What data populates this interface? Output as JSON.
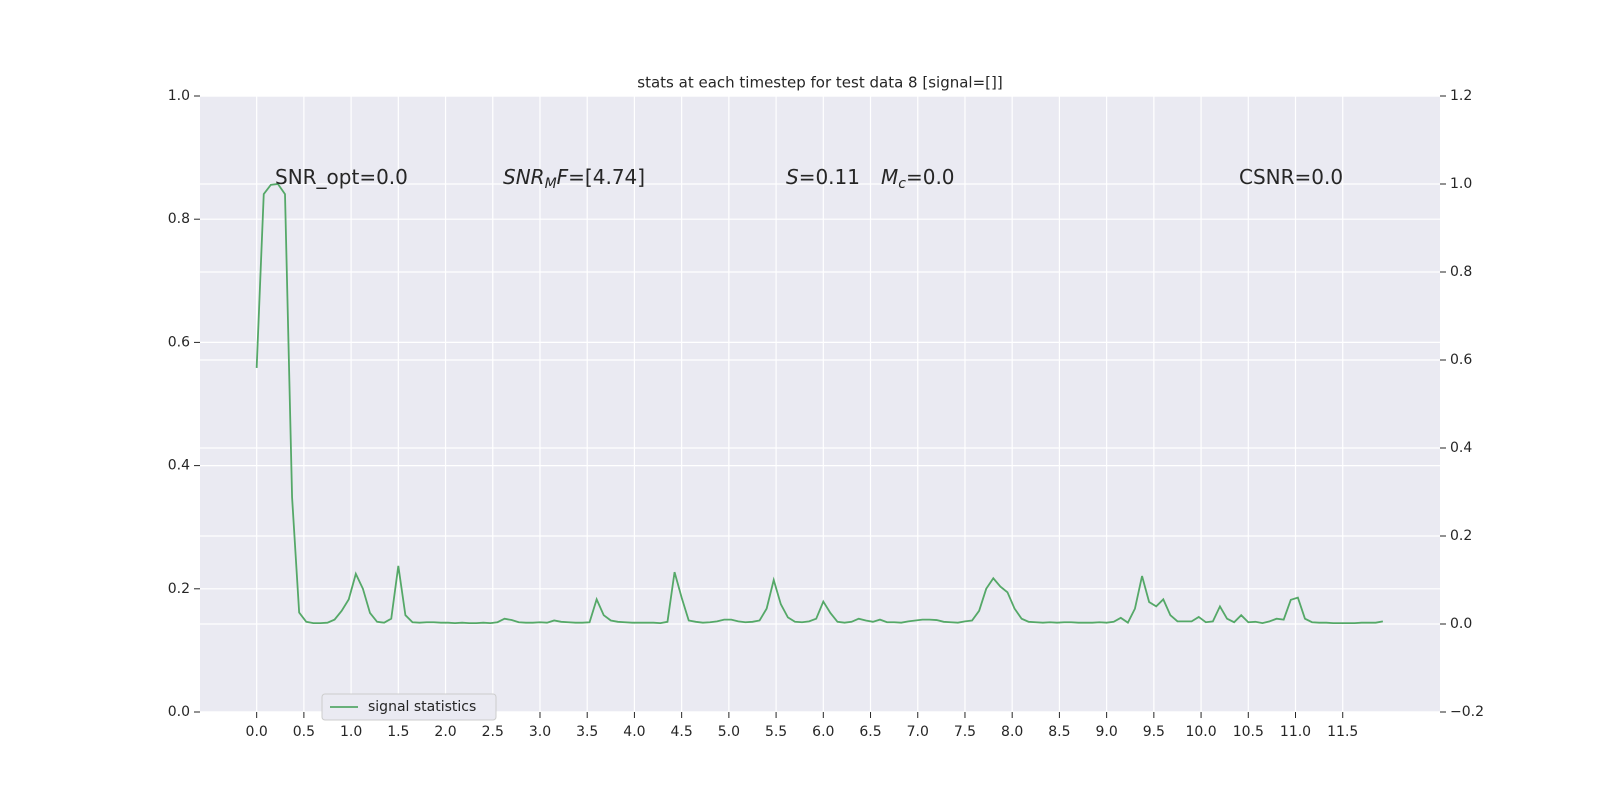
{
  "chart_data": {
    "type": "line",
    "title": "stats at each timestep for test data 8 [signal=[]]",
    "x": [
      0,
      0.075,
      0.15,
      0.225,
      0.3,
      0.375,
      0.45,
      0.525,
      0.6,
      0.675,
      0.75,
      0.825,
      0.9,
      0.975,
      1.05,
      1.125,
      1.2,
      1.275,
      1.35,
      1.425,
      1.5,
      1.575,
      1.65,
      1.725,
      1.8,
      1.875,
      1.95,
      2.025,
      2.1,
      2.175,
      2.25,
      2.325,
      2.4,
      2.475,
      2.55,
      2.625,
      2.7,
      2.775,
      2.85,
      2.925,
      3,
      3.075,
      3.15,
      3.225,
      3.3,
      3.375,
      3.45,
      3.525,
      3.6,
      3.675,
      3.75,
      3.825,
      3.9,
      3.975,
      4.05,
      4.125,
      4.2,
      4.275,
      4.35,
      4.425,
      4.5,
      4.575,
      4.65,
      4.725,
      4.8,
      4.875,
      4.95,
      5.025,
      5.1,
      5.175,
      5.25,
      5.325,
      5.4,
      5.475,
      5.55,
      5.625,
      5.7,
      5.775,
      5.85,
      5.925,
      6,
      6.075,
      6.15,
      6.225,
      6.3,
      6.375,
      6.45,
      6.525,
      6.6,
      6.675,
      6.75,
      6.825,
      6.9,
      6.975,
      7.05,
      7.125,
      7.2,
      7.275,
      7.35,
      7.425,
      7.5,
      7.575,
      7.65,
      7.725,
      7.8,
      7.875,
      7.95,
      8.025,
      8.1,
      8.175,
      8.25,
      8.325,
      8.4,
      8.475,
      8.55,
      8.625,
      8.7,
      8.775,
      8.85,
      8.925,
      9,
      9.075,
      9.15,
      9.225,
      9.3,
      9.375,
      9.45,
      9.525,
      9.6,
      9.675,
      9.75,
      9.825,
      9.9,
      9.975,
      10.05,
      10.125,
      10.2,
      10.275,
      10.35,
      10.425,
      10.5,
      10.575,
      10.65,
      10.725,
      10.8,
      10.875,
      10.95,
      11.025,
      11.1,
      11.175,
      11.25,
      11.325,
      11.4,
      11.475,
      11.55,
      11.625,
      11.7,
      11.775,
      11.85,
      11.925
    ],
    "xlim": [
      -0.6,
      12.53
    ],
    "xticks": [
      {
        "value": 0,
        "label": "0.0"
      },
      0.5,
      {
        "value": 1,
        "label": "1.0"
      },
      1.5,
      {
        "value": 2,
        "label": "2.0"
      },
      2.5,
      {
        "value": 3,
        "label": "3.0"
      },
      3.5,
      {
        "value": 4,
        "label": "4.0"
      },
      4.5,
      {
        "value": 5,
        "label": "5.0"
      },
      5.5,
      {
        "value": 6,
        "label": "6.0"
      },
      6.5,
      {
        "value": 7,
        "label": "7.0"
      },
      7.5,
      {
        "value": 8,
        "label": "8.0"
      },
      8.5,
      {
        "value": 9,
        "label": "9.0"
      },
      9.5,
      {
        "value": 10,
        "label": "10.0"
      },
      10.5,
      {
        "value": 11,
        "label": "11.0"
      },
      11.5
    ],
    "ylim": [
      0,
      1
    ],
    "yticks": [
      {
        "value": 0,
        "label": "0.0"
      },
      0.2,
      0.4,
      0.6,
      0.8,
      {
        "value": 1,
        "label": "1.0"
      }
    ],
    "y2lim": [
      -0.2,
      1.2
    ],
    "y2ticks": [
      {
        "value": -0.2,
        "label": "−0.2"
      },
      {
        "value": 0,
        "label": "0.0"
      },
      0.2,
      0.4,
      0.6,
      0.8,
      {
        "value": 1,
        "label": "1.0"
      },
      1.2
    ],
    "grid": true,
    "legend_loc": "lower left",
    "series": [
      {
        "name": "signal statistics",
        "color": "#55a868",
        "axis": "y2",
        "values": [
          0.582,
          0.977,
          0.998,
          1.0,
          0.977,
          0.288,
          0.026,
          0.005,
          0.002,
          0.002,
          0.003,
          0.01,
          0.03,
          0.056,
          0.114,
          0.08,
          0.025,
          0.005,
          0.003,
          0.012,
          0.132,
          0.02,
          0.004,
          0.003,
          0.004,
          0.004,
          0.003,
          0.003,
          0.002,
          0.003,
          0.002,
          0.002,
          0.003,
          0.002,
          0.004,
          0.012,
          0.009,
          0.004,
          0.003,
          0.003,
          0.004,
          0.003,
          0.008,
          0.005,
          0.004,
          0.003,
          0.003,
          0.004,
          0.056,
          0.02,
          0.008,
          0.005,
          0.004,
          0.003,
          0.003,
          0.003,
          0.003,
          0.002,
          0.005,
          0.118,
          0.06,
          0.008,
          0.005,
          0.003,
          0.004,
          0.006,
          0.01,
          0.01,
          0.006,
          0.004,
          0.005,
          0.008,
          0.035,
          0.1,
          0.045,
          0.015,
          0.005,
          0.004,
          0.006,
          0.012,
          0.051,
          0.025,
          0.005,
          0.003,
          0.005,
          0.012,
          0.008,
          0.005,
          0.01,
          0.004,
          0.004,
          0.003,
          0.006,
          0.008,
          0.01,
          0.01,
          0.009,
          0.005,
          0.004,
          0.003,
          0.006,
          0.008,
          0.03,
          0.08,
          0.104,
          0.085,
          0.072,
          0.035,
          0.012,
          0.005,
          0.004,
          0.003,
          0.004,
          0.003,
          0.004,
          0.004,
          0.003,
          0.003,
          0.003,
          0.004,
          0.003,
          0.005,
          0.014,
          0.003,
          0.035,
          0.109,
          0.05,
          0.04,
          0.056,
          0.02,
          0.006,
          0.006,
          0.006,
          0.016,
          0.004,
          0.006,
          0.04,
          0.012,
          0.004,
          0.02,
          0.004,
          0.005,
          0.002,
          0.006,
          0.012,
          0.01,
          0.055,
          0.06,
          0.012,
          0.004,
          0.003,
          0.003,
          0.002,
          0.002,
          0.002,
          0.002,
          0.003,
          0.003,
          0.003,
          0.006
        ]
      }
    ],
    "annotations": [
      {
        "parts": [
          {
            "text": "SNR_opt=0.0",
            "style": "normal"
          }
        ]
      },
      {
        "parts": [
          {
            "text": "SNR",
            "style": "italic"
          },
          {
            "text": "M",
            "style": "sub"
          },
          {
            "text": "F",
            "style": "italic"
          },
          {
            "text": "=[4.74]",
            "style": "normal"
          }
        ]
      },
      {
        "parts": [
          {
            "text": "S",
            "style": "italic"
          },
          {
            "text": "=0.11",
            "style": "normal"
          }
        ]
      },
      {
        "parts": [
          {
            "text": "M",
            "style": "italic"
          },
          {
            "text": "c",
            "style": "sub"
          },
          {
            "text": "=0.0",
            "style": "normal"
          }
        ]
      },
      {
        "parts": [
          {
            "text": "CSNR=0.0",
            "style": "normal"
          }
        ]
      }
    ]
  }
}
